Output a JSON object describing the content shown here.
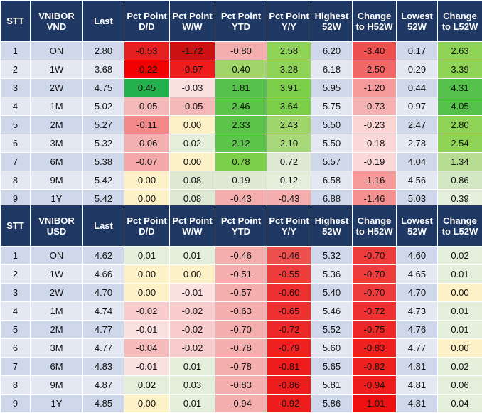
{
  "colors": {
    "header_bg": "#1f3864",
    "header_text": "#ffffff",
    "row_light": "#e4e8f2",
    "row_dark": "#cfd7ea",
    "strong_green": "#23b14d",
    "mid_green": "#7ccf49",
    "pale_green": "#dde9d3",
    "strong_red": "#ee1c1c",
    "mid_red": "#ee5050",
    "pale_red": "#f4aeae",
    "pale_yellow": "#fdf1c8"
  },
  "tables": [
    {
      "id": "vnd",
      "headers": [
        "STT",
        "VNIBOR VND",
        "Last",
        "Pct Point D/D",
        "Pct Point W/W",
        "Pct Point YTD",
        "Pct Point Y/Y",
        "Highest 52W",
        "Change to H52W",
        "Lowest 52W",
        "Change to L52W"
      ],
      "rows": [
        {
          "cells": [
            "1",
            "ON",
            "2.80",
            "-0.53",
            "-1.72",
            "-0.80",
            "2.58",
            "6.20",
            "-3.40",
            "0.17",
            "2.63"
          ],
          "colors": [
            null,
            null,
            null,
            "#e52020",
            "#cc1111",
            "#f4aeae",
            "#8fd357",
            null,
            "#ee5050",
            null,
            "#8fd357"
          ]
        },
        {
          "cells": [
            "2",
            "1W",
            "3.68",
            "-0.22",
            "-0.97",
            "0.40",
            "3.28",
            "6.18",
            "-2.50",
            "0.29",
            "3.39"
          ],
          "colors": [
            null,
            null,
            null,
            "#f20000",
            "#ee1c1c",
            "#9fd56b",
            "#8fd357",
            null,
            "#f26868",
            null,
            "#8fd357"
          ]
        },
        {
          "cells": [
            "3",
            "2W",
            "4.75",
            "0.45",
            "-0.03",
            "1.81",
            "3.91",
            "5.95",
            "-1.20",
            "0.44",
            "4.31"
          ],
          "colors": [
            null,
            null,
            null,
            "#23b14d",
            "#fbe0e0",
            "#55c04a",
            "#7ccf49",
            null,
            "#f49a9a",
            null,
            "#55c04a"
          ]
        },
        {
          "cells": [
            "4",
            "1M",
            "5.02",
            "-0.05",
            "-0.05",
            "2.46",
            "3.64",
            "5.75",
            "-0.73",
            "0.97",
            "4.05"
          ],
          "colors": [
            null,
            null,
            null,
            "#f4b8b8",
            "#f4b8b8",
            "#5cc44a",
            "#7ccf49",
            null,
            "#f6b2b2",
            null,
            "#55c04a"
          ]
        },
        {
          "cells": [
            "5",
            "2M",
            "5.27",
            "-0.11",
            "0.00",
            "2.33",
            "2.43",
            "5.50",
            "-0.23",
            "2.47",
            "2.80"
          ],
          "colors": [
            null,
            null,
            null,
            "#f28888",
            "#fdf1c8",
            "#5cc44a",
            "#9fd56b",
            null,
            "#fbd4d4",
            null,
            "#8fd357"
          ]
        },
        {
          "cells": [
            "6",
            "3M",
            "5.32",
            "-0.06",
            "0.02",
            "2.12",
            "2.10",
            "5.50",
            "-0.18",
            "2.78",
            "2.54"
          ],
          "colors": [
            null,
            null,
            null,
            "#f4b0b0",
            "#e3eedb",
            "#5cc44a",
            "#a7d97a",
            null,
            "#fbd8d8",
            null,
            "#8fd357"
          ]
        },
        {
          "cells": [
            "7",
            "6M",
            "5.38",
            "-0.07",
            "0.00",
            "0.78",
            "0.72",
            "5.57",
            "-0.19",
            "4.04",
            "1.34"
          ],
          "colors": [
            null,
            null,
            null,
            "#f4a8a8",
            "#fdf1c8",
            "#7ccf49",
            "#dde9d3",
            null,
            "#fbd8d8",
            null,
            "#b7dd93"
          ]
        },
        {
          "cells": [
            "8",
            "9M",
            "5.42",
            "0.00",
            "0.08",
            "0.19",
            "0.12",
            "6.58",
            "-1.16",
            "4.56",
            "0.86"
          ],
          "colors": [
            null,
            null,
            null,
            "#fdf1c8",
            "#dde9d3",
            "#dde9d3",
            "#e3eedb",
            null,
            "#f49a9a",
            null,
            "#d4e7c4"
          ]
        },
        {
          "cells": [
            "9",
            "1Y",
            "5.42",
            "0.00",
            "0.08",
            "-0.43",
            "-0.43",
            "6.88",
            "-1.46",
            "5.03",
            "0.39"
          ],
          "colors": [
            null,
            null,
            null,
            "#fdf1c8",
            "#dde9d3",
            "#f4aeae",
            "#f4aeae",
            null,
            "#f49090",
            null,
            "#e3eedb"
          ]
        }
      ]
    },
    {
      "id": "usd",
      "headers": [
        "STT",
        "VNIBOR USD",
        "Last",
        "Pct Point D/D",
        "Pct Point W/W",
        "Pct Point YTD",
        "Pct Point Y/Y",
        "Highest 52W",
        "Change to H52W",
        "Lowest 52W",
        "Change to L52W"
      ],
      "rows": [
        {
          "cells": [
            "1",
            "ON",
            "4.62",
            "0.01",
            "0.01",
            "-0.46",
            "-0.46",
            "5.32",
            "-0.70",
            "4.60",
            "0.02"
          ],
          "colors": [
            null,
            null,
            null,
            "#e3eedb",
            "#e3eedb",
            "#f4aeae",
            "#ee5050",
            null,
            "#ee3c3c",
            null,
            "#e3eedb"
          ]
        },
        {
          "cells": [
            "2",
            "1W",
            "4.66",
            "0.00",
            "0.00",
            "-0.51",
            "-0.55",
            "5.36",
            "-0.70",
            "4.65",
            "0.01"
          ],
          "colors": [
            null,
            null,
            null,
            "#fdf1c8",
            "#fdf1c8",
            "#f4aeae",
            "#ee3c3c",
            null,
            "#ee3c3c",
            null,
            "#e3eedb"
          ]
        },
        {
          "cells": [
            "3",
            "2W",
            "4.70",
            "0.00",
            "-0.01",
            "-0.57",
            "-0.60",
            "5.40",
            "-0.70",
            "4.70",
            "0.00"
          ],
          "colors": [
            null,
            null,
            null,
            "#fdf1c8",
            "#fbe0e0",
            "#f4aeae",
            "#ee3030",
            null,
            "#ee3c3c",
            null,
            "#fdf1c8"
          ]
        },
        {
          "cells": [
            "4",
            "1M",
            "4.74",
            "-0.02",
            "-0.02",
            "-0.63",
            "-0.65",
            "5.46",
            "-0.72",
            "4.73",
            "0.01"
          ],
          "colors": [
            null,
            null,
            null,
            "#f8cccc",
            "#f8cccc",
            "#f4aeae",
            "#ee3030",
            null,
            "#ee3030",
            null,
            "#e3eedb"
          ]
        },
        {
          "cells": [
            "5",
            "2M",
            "4.77",
            "-0.01",
            "-0.02",
            "-0.70",
            "-0.72",
            "5.52",
            "-0.75",
            "4.76",
            "0.01"
          ],
          "colors": [
            null,
            null,
            null,
            "#fbe0e0",
            "#f8cccc",
            "#f4aeae",
            "#ee2828",
            null,
            "#ee2828",
            null,
            "#e3eedb"
          ]
        },
        {
          "cells": [
            "6",
            "3M",
            "4.77",
            "-0.04",
            "-0.02",
            "-0.78",
            "-0.79",
            "5.60",
            "-0.83",
            "4.77",
            "0.00"
          ],
          "colors": [
            null,
            null,
            null,
            "#f6bcbc",
            "#f8cccc",
            "#f4aeae",
            "#ee2020",
            null,
            "#ee2020",
            null,
            "#fdf1c8"
          ]
        },
        {
          "cells": [
            "7",
            "6M",
            "4.83",
            "-0.01",
            "0.01",
            "-0.78",
            "-0.81",
            "5.65",
            "-0.82",
            "4.81",
            "0.02"
          ],
          "colors": [
            null,
            null,
            null,
            "#fbe0e0",
            "#e3eedb",
            "#f4aeae",
            "#ee1c1c",
            null,
            "#ee2020",
            null,
            "#e3eedb"
          ]
        },
        {
          "cells": [
            "8",
            "9M",
            "4.87",
            "0.02",
            "0.03",
            "-0.83",
            "-0.86",
            "5.81",
            "-0.94",
            "4.81",
            "0.06"
          ],
          "colors": [
            null,
            null,
            null,
            "#e3eedb",
            "#e3eedb",
            "#f4aeae",
            "#ee1c1c",
            null,
            "#ee1c1c",
            null,
            "#e3eedb"
          ]
        },
        {
          "cells": [
            "9",
            "1Y",
            "4.85",
            "0.00",
            "0.01",
            "-0.94",
            "-0.92",
            "5.86",
            "-1.01",
            "4.81",
            "0.04"
          ],
          "colors": [
            null,
            null,
            null,
            "#fdf1c8",
            "#e3eedb",
            "#f4aeae",
            "#ee1c1c",
            null,
            "#ee1010",
            null,
            "#e3eedb"
          ]
        }
      ]
    }
  ]
}
